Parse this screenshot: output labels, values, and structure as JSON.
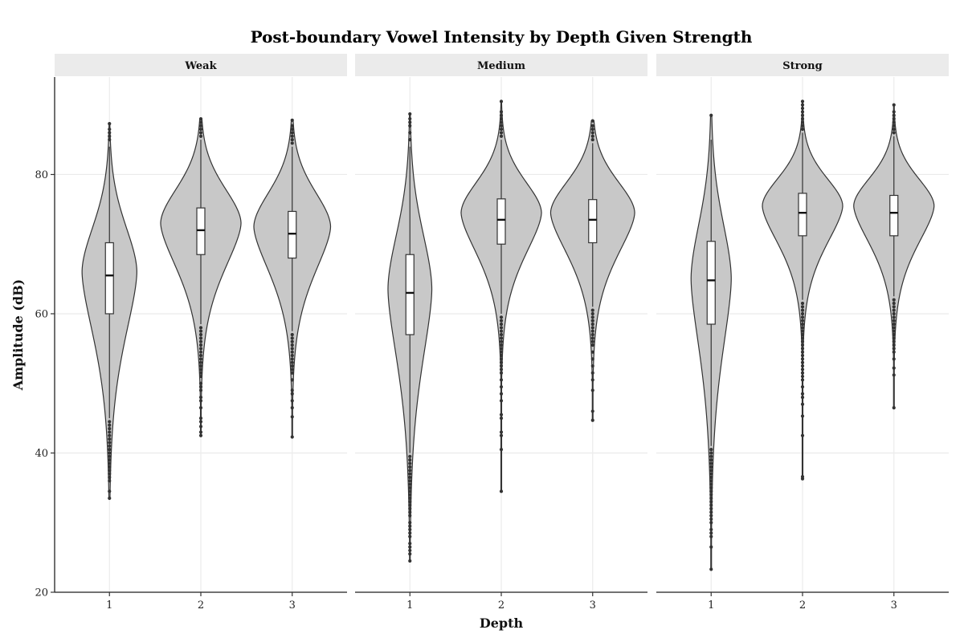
{
  "chart_data": {
    "type": "violin",
    "title": "Post-boundary Vowel Intensity by Depth Given Strength",
    "xlabel": "Depth",
    "ylabel": "Amplitude (dB)",
    "ylim": [
      20,
      94
    ],
    "yticks": [
      20,
      40,
      60,
      80
    ],
    "categories": [
      "1",
      "2",
      "3"
    ],
    "grid": true,
    "colors": {
      "violin_fill": "#c8c8c8",
      "box_fill": "#ffffff",
      "stroke": "#333333",
      "strip": "#ebebeb",
      "grid": "#ebebeb"
    },
    "panels": [
      {
        "name": "Weak",
        "groups": [
          {
            "depth": "1",
            "q1": 60.0,
            "median": 65.5,
            "q3": 70.2,
            "whisker_low": 45.0,
            "whisker_high": 84.0,
            "min": 33.5,
            "max": 87.3,
            "mode": 66.0,
            "max_width": 0.3,
            "spread_up": 6.5,
            "spread_down": 9.0,
            "outliers": [
              33.5,
              34.5,
              36,
              36.5,
              37,
              37.5,
              38,
              38.5,
              39,
              39.5,
              40,
              40.5,
              41,
              41.5,
              42,
              42.5,
              43,
              43.5,
              44,
              44.5,
              85,
              85.5,
              86,
              86.5,
              87.3
            ]
          },
          {
            "depth": "2",
            "q1": 68.5,
            "median": 72.0,
            "q3": 75.2,
            "whisker_low": 58.5,
            "whisker_high": 85.0,
            "min": 42.5,
            "max": 88.0,
            "mode": 73.0,
            "max_width": 0.44,
            "spread_up": 5.0,
            "spread_down": 6.5,
            "outliers": [
              42.5,
              43,
              43.8,
              44.5,
              45,
              46.5,
              47.5,
              48,
              49,
              49.5,
              50,
              51,
              51.5,
              52,
              52.5,
              53,
              53.5,
              54,
              54.5,
              55,
              55.5,
              56,
              56.5,
              57,
              57.5,
              58,
              85.5,
              86,
              86.5,
              87,
              87.5,
              88
            ]
          },
          {
            "depth": "3",
            "q1": 68.0,
            "median": 71.5,
            "q3": 74.7,
            "whisker_low": 57.5,
            "whisker_high": 84.0,
            "min": 42.3,
            "max": 87.8,
            "mode": 72.5,
            "max_width": 0.42,
            "spread_up": 5.0,
            "spread_down": 6.5,
            "outliers": [
              42.3,
              45.2,
              46.5,
              47.5,
              48.5,
              49,
              50.5,
              51.5,
              52,
              52.5,
              53,
              53.5,
              54,
              54.5,
              55,
              55.5,
              56,
              56.5,
              57,
              84.5,
              85,
              85.5,
              86,
              86.5,
              87,
              87.8
            ]
          }
        ]
      },
      {
        "name": "Medium",
        "groups": [
          {
            "depth": "1",
            "q1": 57.0,
            "median": 63.0,
            "q3": 68.5,
            "whisker_low": 40.0,
            "whisker_high": 84.0,
            "min": 24.5,
            "max": 88.7,
            "mode": 63.5,
            "max_width": 0.24,
            "spread_up": 8.0,
            "spread_down": 10.0,
            "outliers": [
              24.5,
              25.5,
              26,
              26.5,
              27,
              28,
              28.5,
              29,
              29.5,
              30,
              31,
              31.5,
              32,
              32.5,
              33,
              33.5,
              34,
              34.5,
              35,
              35.5,
              36,
              36.5,
              37,
              37.5,
              38,
              38.5,
              39,
              39.5,
              85,
              86,
              87,
              87.5,
              88,
              88.7
            ]
          },
          {
            "depth": "2",
            "q1": 70.0,
            "median": 73.5,
            "q3": 76.5,
            "whisker_low": 60.0,
            "whisker_high": 85.0,
            "min": 34.5,
            "max": 90.5,
            "mode": 74.5,
            "max_width": 0.44,
            "spread_up": 4.5,
            "spread_down": 6.0,
            "outliers": [
              34.5,
              40.5,
              42.5,
              43,
              45,
              45.5,
              47.5,
              48.5,
              49.5,
              50.5,
              51.5,
              52,
              52.5,
              53,
              53.5,
              54,
              54.5,
              55,
              55.5,
              56,
              56.5,
              57,
              57.5,
              58,
              58.5,
              59,
              59.5,
              85.5,
              86,
              86.5,
              87,
              87.5,
              88,
              88.5,
              89,
              90.5
            ]
          },
          {
            "depth": "3",
            "q1": 70.2,
            "median": 73.5,
            "q3": 76.4,
            "whisker_low": 61.0,
            "whisker_high": 84.5,
            "min": 44.7,
            "max": 87.7,
            "mode": 74.5,
            "max_width": 0.46,
            "spread_up": 4.5,
            "spread_down": 6.0,
            "outliers": [
              44.7,
              46,
              49,
              50.5,
              51.5,
              52.5,
              53.5,
              54.5,
              55.5,
              56,
              56.5,
              57,
              57.5,
              58,
              58.5,
              59,
              59.5,
              60,
              60.5,
              85,
              85.5,
              86,
              86.5,
              87,
              87.7
            ]
          }
        ]
      },
      {
        "name": "Strong",
        "groups": [
          {
            "depth": "1",
            "q1": 58.5,
            "median": 64.8,
            "q3": 70.4,
            "whisker_low": 41.0,
            "whisker_high": 85.0,
            "min": 23.3,
            "max": 88.5,
            "mode": 65.0,
            "max_width": 0.22,
            "spread_up": 8.0,
            "spread_down": 10.0,
            "outliers": [
              23.3,
              26.5,
              28,
              28.5,
              29,
              30,
              30.5,
              31,
              31.5,
              32,
              32.5,
              33,
              33.5,
              34,
              34.5,
              35,
              35.5,
              36,
              36.5,
              37,
              37.5,
              38,
              38.5,
              39,
              39.5,
              40,
              40.5,
              88.5
            ]
          },
          {
            "depth": "2",
            "q1": 71.2,
            "median": 74.5,
            "q3": 77.3,
            "whisker_low": 62.0,
            "whisker_high": 86.0,
            "min": 36.3,
            "max": 90.5,
            "mode": 75.5,
            "max_width": 0.44,
            "spread_up": 4.0,
            "spread_down": 5.5,
            "outliers": [
              36.3,
              36.6,
              42.5,
              45.3,
              47,
              48,
              48.5,
              49.5,
              50.5,
              51,
              51.5,
              52,
              52.5,
              53,
              53.5,
              54,
              54.5,
              55,
              55.5,
              56,
              56.5,
              57,
              57.5,
              58,
              58.5,
              59,
              59.5,
              60,
              60.5,
              61,
              61.5,
              86.5,
              87,
              87.5,
              88,
              88.5,
              89,
              89.5,
              90,
              90.5
            ]
          },
          {
            "depth": "3",
            "q1": 71.2,
            "median": 74.5,
            "q3": 77.0,
            "whisker_low": 62.5,
            "whisker_high": 85.5,
            "min": 46.5,
            "max": 90.0,
            "mode": 75.5,
            "max_width": 0.44,
            "spread_up": 4.0,
            "spread_down": 5.5,
            "outliers": [
              46.5,
              51.2,
              52.2,
              53.5,
              54.5,
              55,
              55.5,
              56,
              56.5,
              57,
              57.5,
              58,
              58.5,
              59,
              59.5,
              60,
              60.5,
              61,
              61.5,
              62,
              86,
              86.5,
              87,
              87.5,
              88,
              88.5,
              89,
              90
            ]
          }
        ]
      }
    ]
  }
}
